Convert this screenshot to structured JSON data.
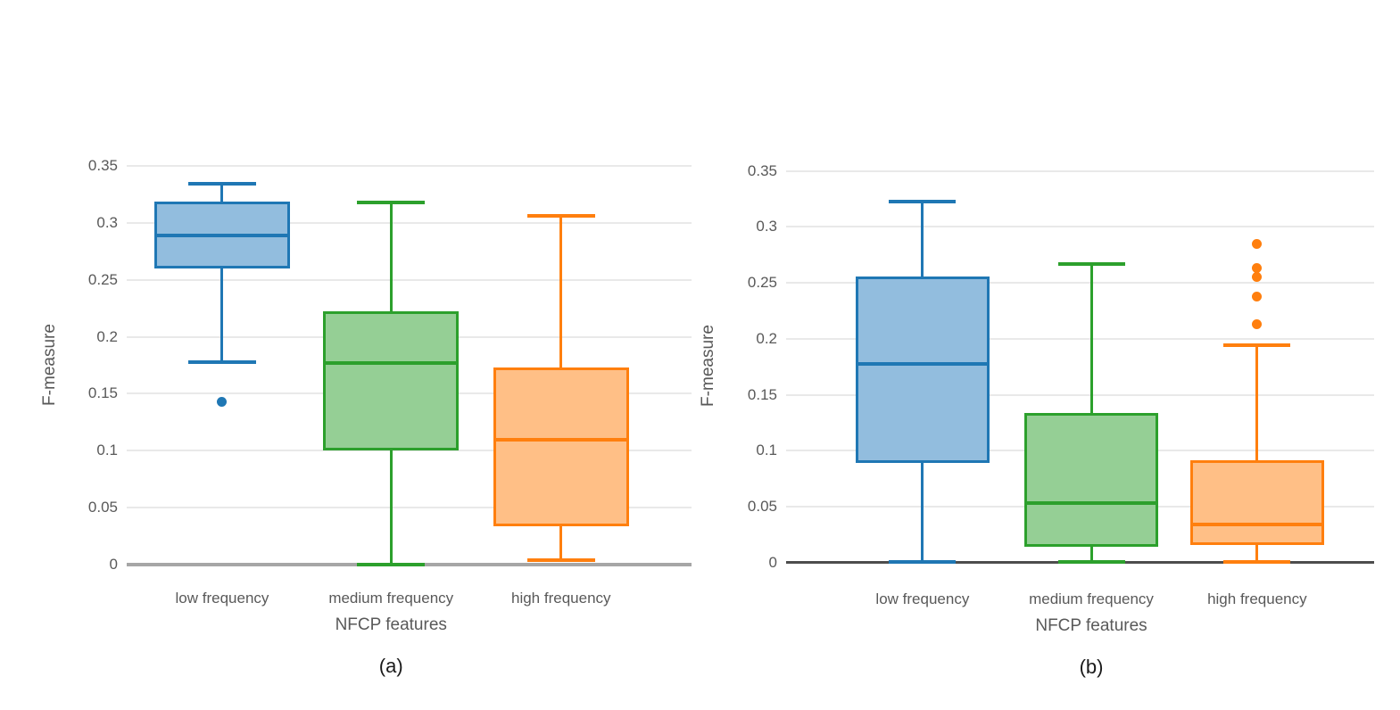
{
  "style": {
    "background": "#ffffff",
    "text_color": "#595959",
    "caption_color": "#1a1a1a",
    "gridline_color": "#e9e9e9"
  },
  "chart_data": [
    {
      "type": "boxplot",
      "caption": "(a)",
      "ylabel": "F-measure",
      "xlabel": "NFCP features",
      "categories": [
        "low frequency",
        "medium frequency",
        "high frequency"
      ],
      "ylim": [
        0,
        0.3625
      ],
      "grid": "horizontal",
      "legend": "none",
      "axis_line_color": "#a6a6a6",
      "yticks": [
        {
          "v": 0,
          "label": "0"
        },
        {
          "v": 0.05,
          "label": "0.05"
        },
        {
          "v": 0.1,
          "label": "0.1"
        },
        {
          "v": 0.15,
          "label": "0.15"
        },
        {
          "v": 0.2,
          "label": "0.2"
        },
        {
          "v": 0.25,
          "label": "0.25"
        },
        {
          "v": 0.3,
          "label": "0.3"
        },
        {
          "v": 0.35,
          "label": "0.35"
        }
      ],
      "series": [
        {
          "name": "low frequency",
          "color": "#1f77b4",
          "fill": "#92bdde",
          "whisker_low": 0.178,
          "q1": 0.26,
          "median": 0.289,
          "q3": 0.319,
          "whisker_high": 0.334,
          "outliers": [
            0.143
          ]
        },
        {
          "name": "medium frequency",
          "color": "#2ca02c",
          "fill": "#95cf95",
          "whisker_low": 0.0,
          "q1": 0.1,
          "median": 0.177,
          "q3": 0.222,
          "whisker_high": 0.318,
          "outliers": []
        },
        {
          "name": "high frequency",
          "color": "#ff7f0e",
          "fill": "#ffbf86",
          "whisker_low": 0.004,
          "q1": 0.034,
          "median": 0.11,
          "q3": 0.173,
          "whisker_high": 0.306,
          "outliers": []
        }
      ]
    },
    {
      "type": "boxplot",
      "caption": "(b)",
      "ylabel": "F-measure",
      "xlabel": "NFCP features",
      "categories": [
        "low frequency",
        "medium frequency",
        "high frequency"
      ],
      "ylim": [
        0,
        0.3625
      ],
      "grid": "horizontal",
      "legend": "none",
      "axis_line_color": "#4d4d4d",
      "yticks": [
        {
          "v": 0,
          "label": "0"
        },
        {
          "v": 0.05,
          "label": "0.05"
        },
        {
          "v": 0.1,
          "label": "0.1"
        },
        {
          "v": 0.15,
          "label": "0.15"
        },
        {
          "v": 0.2,
          "label": "0.2"
        },
        {
          "v": 0.25,
          "label": "0.25"
        },
        {
          "v": 0.3,
          "label": "0.3"
        },
        {
          "v": 0.35,
          "label": "0.35"
        }
      ],
      "series": [
        {
          "name": "low frequency",
          "color": "#1f77b4",
          "fill": "#92bdde",
          "whisker_low": 0.001,
          "q1": 0.089,
          "median": 0.178,
          "q3": 0.256,
          "whisker_high": 0.323,
          "outliers": []
        },
        {
          "name": "medium frequency",
          "color": "#2ca02c",
          "fill": "#95cf95",
          "whisker_low": 0.001,
          "q1": 0.014,
          "median": 0.053,
          "q3": 0.134,
          "whisker_high": 0.267,
          "outliers": []
        },
        {
          "name": "high frequency",
          "color": "#ff7f0e",
          "fill": "#ffbf86",
          "whisker_low": 0.001,
          "q1": 0.016,
          "median": 0.034,
          "q3": 0.092,
          "whisker_high": 0.194,
          "outliers": [
            0.213,
            0.238,
            0.255,
            0.263,
            0.285
          ]
        }
      ]
    }
  ]
}
